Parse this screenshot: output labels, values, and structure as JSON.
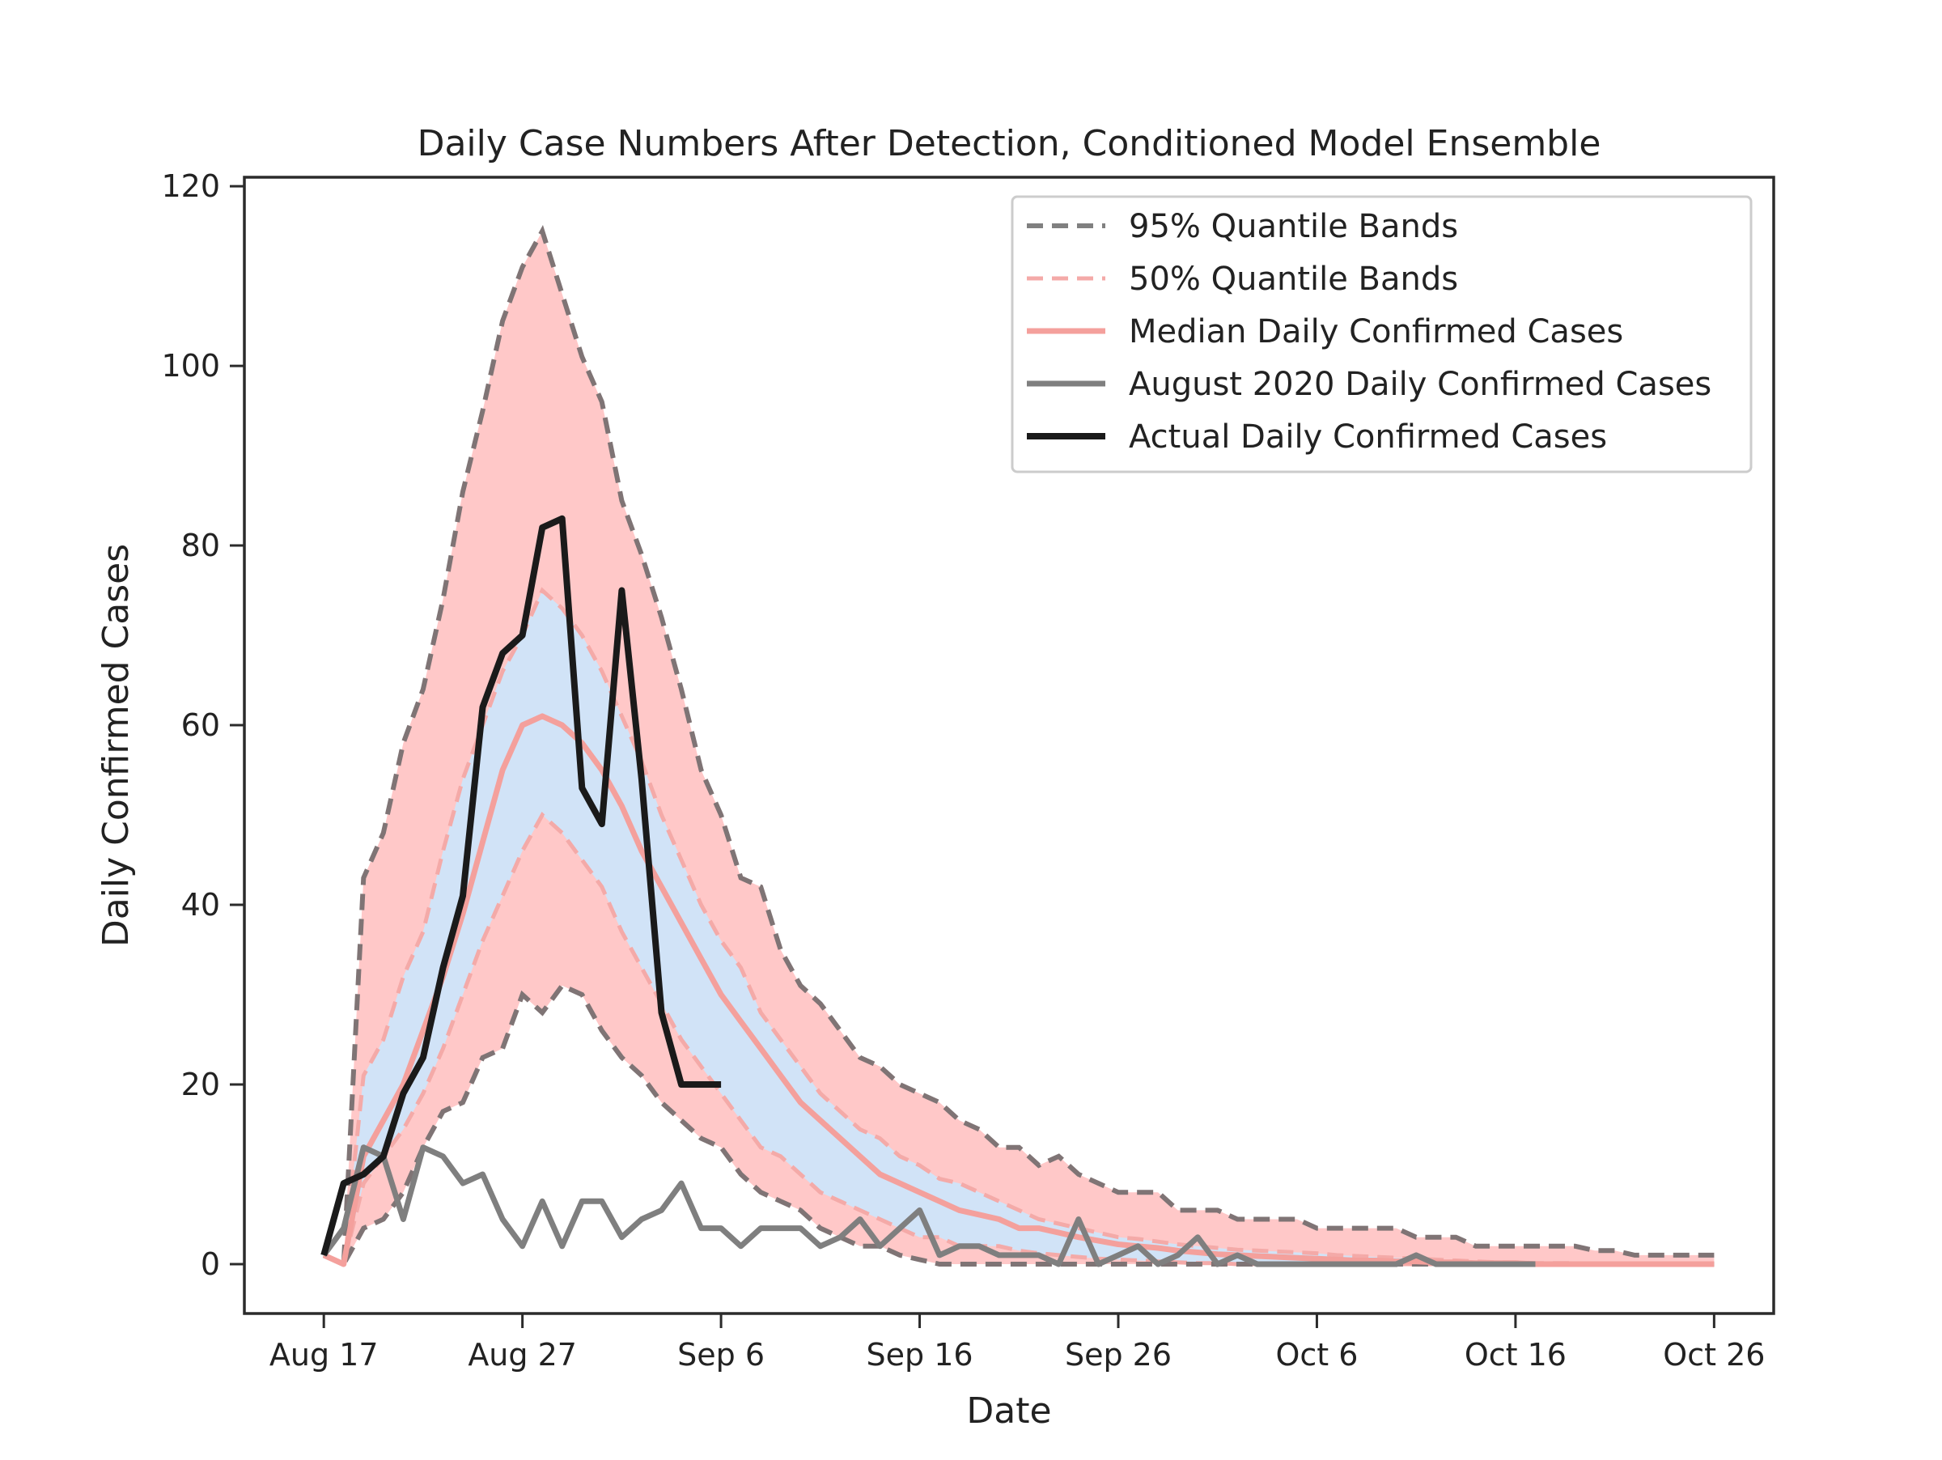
{
  "chart_data": {
    "type": "line",
    "title": "Daily Case Numbers After Detection, Conditioned Model Ensemble",
    "xlabel": "Date",
    "ylabel": "Daily Confirmed Cases",
    "x_ticks": [
      "Aug 17",
      "Aug 27",
      "Sep 6",
      "Sep 16",
      "Sep 26",
      "Oct 6",
      "Oct 16",
      "Oct 26"
    ],
    "y_ticks": [
      0,
      20,
      40,
      60,
      80,
      100,
      120
    ],
    "ylim": [
      -5.5,
      121
    ],
    "xlim": [
      "Aug 13",
      "Oct 29"
    ],
    "grid": false,
    "legend_position": "top-right",
    "legend": [
      {
        "label": "95% Quantile Bands",
        "style": "dashed",
        "color": "#808080"
      },
      {
        "label": "50% Quantile Bands",
        "style": "dashed",
        "color": "#f4aaa8"
      },
      {
        "label": "Median Daily Confirmed Cases",
        "style": "solid",
        "color": "#f4a09c"
      },
      {
        "label": "August 2020 Daily Confirmed Cases",
        "style": "solid",
        "color": "#7f7f7f"
      },
      {
        "label": "Actual Daily Confirmed Cases",
        "style": "solid",
        "color": "#1a1a1a"
      }
    ],
    "colors": {
      "outer_fill": "#ffc8c8",
      "inner_fill": "#d1e3f7",
      "band95_line": "#7f7475",
      "band50_line": "#f4aaa8",
      "median_line": "#f4a09c",
      "august_line": "#7f7f7f",
      "actual_line": "#1a1a1a"
    },
    "x_start_date": "Aug 17",
    "series": [
      {
        "name": "95% Quantile Bands (upper)",
        "start": "Aug 17",
        "values": [
          1,
          0,
          43,
          48,
          58,
          64,
          74,
          86,
          95,
          105,
          111,
          115,
          108,
          101,
          96,
          85,
          79,
          72,
          64,
          55,
          50,
          43,
          42,
          35,
          31,
          29,
          26,
          23,
          22,
          20,
          19,
          18,
          16,
          15,
          13,
          13,
          11,
          12,
          10,
          9,
          8,
          8,
          8,
          6,
          6,
          6,
          5,
          5,
          5,
          5,
          4,
          4,
          4,
          4,
          4,
          3,
          3,
          3,
          2,
          2,
          2,
          2,
          2,
          2,
          1.5,
          1.5,
          1,
          1,
          1,
          1,
          1
        ]
      },
      {
        "name": "50% Quantile Bands (upper)",
        "start": "Aug 17",
        "values": [
          1,
          0,
          21,
          25,
          32,
          37,
          46,
          54,
          60,
          66,
          70,
          75,
          73,
          70,
          66,
          61,
          56,
          50,
          45,
          40,
          36,
          33,
          28,
          25,
          22,
          19,
          17,
          15,
          14,
          12,
          11,
          9.5,
          9,
          8,
          7,
          6,
          5,
          4.5,
          4,
          3.5,
          3,
          2.8,
          2.5,
          2.2,
          2,
          1.8,
          1.6,
          1.5,
          1.4,
          1.3,
          1.2,
          1,
          0.9,
          0.8,
          0.7,
          0.6,
          0.5,
          0.4,
          0.3,
          0.2,
          0.2,
          0.1,
          0.1,
          0.1,
          0,
          0,
          0,
          0,
          0,
          0,
          0
        ]
      },
      {
        "name": "Median Daily Confirmed Cases",
        "start": "Aug 17",
        "values": [
          1,
          0,
          12,
          16,
          20,
          26,
          32,
          39,
          47,
          55,
          60,
          61,
          60,
          58,
          55,
          51,
          46,
          42,
          38,
          34,
          30,
          27,
          24,
          21,
          18,
          16,
          14,
          12,
          10,
          9,
          8,
          7,
          6,
          5.5,
          5,
          4,
          4,
          3.5,
          3,
          2.6,
          2.2,
          2,
          1.8,
          1.5,
          1.3,
          1.1,
          1,
          0.9,
          0.8,
          0.7,
          0.6,
          0.5,
          0.4,
          0.4,
          0.3,
          0.3,
          0.2,
          0.2,
          0.1,
          0.1,
          0.1,
          0,
          0,
          0,
          0,
          0,
          0,
          0,
          0,
          0,
          0
        ]
      },
      {
        "name": "50% Quantile Bands (lower)",
        "start": "Aug 17",
        "values": [
          1,
          0,
          9,
          12,
          15,
          19,
          24,
          30,
          36,
          41,
          46,
          50,
          48,
          45,
          42,
          37,
          33,
          29,
          25,
          22,
          19,
          16,
          13,
          12,
          10,
          8,
          7,
          6,
          5,
          4,
          3,
          3,
          2,
          2,
          2,
          1.5,
          1.2,
          1,
          0.8,
          0.6,
          0.5,
          0.4,
          0.3,
          0.2,
          0.1,
          0.1,
          0,
          0,
          0,
          0,
          0,
          0,
          0,
          0,
          0,
          0,
          0,
          0,
          0,
          0,
          0,
          0,
          0,
          0,
          0,
          0,
          0,
          0,
          0,
          0,
          0
        ]
      },
      {
        "name": "95% Quantile Bands (lower)",
        "start": "Aug 17",
        "values": [
          1,
          0,
          4,
          5,
          8,
          13,
          17,
          18,
          23,
          24,
          30,
          28,
          31,
          30,
          26,
          23,
          21,
          18,
          16,
          14,
          13,
          10,
          8,
          7,
          6,
          4,
          3,
          2,
          2,
          1,
          0.5,
          0,
          0,
          0,
          0,
          0,
          0,
          0,
          0,
          0,
          0,
          0,
          0,
          0,
          0,
          0,
          0,
          0,
          0,
          0,
          0,
          0,
          0,
          0,
          0,
          0,
          0,
          0,
          0,
          0,
          0,
          0,
          0,
          0,
          0,
          0,
          0,
          0,
          0,
          0,
          0
        ]
      },
      {
        "name": "August 2020 Daily Confirmed Cases",
        "start": "Aug 17",
        "values": [
          1,
          4,
          13,
          12,
          5,
          13,
          12,
          9,
          10,
          5,
          2,
          7,
          2,
          7,
          7,
          3,
          5,
          6,
          9,
          4,
          4,
          2,
          4,
          4,
          4,
          2,
          3,
          5,
          2,
          4,
          6,
          1,
          2,
          2,
          1,
          1,
          1,
          0,
          5,
          0,
          1,
          2,
          0,
          1,
          3,
          0,
          1,
          0,
          0,
          0,
          0,
          0,
          0,
          0,
          0,
          1,
          0,
          0,
          0,
          0,
          0,
          0
        ]
      },
      {
        "name": "Actual Daily Confirmed Cases",
        "start": "Aug 17",
        "values": [
          1,
          9,
          10,
          12,
          19,
          23,
          33,
          41,
          62,
          68,
          70,
          82,
          83,
          53,
          49,
          75,
          54,
          28,
          20,
          20,
          20
        ]
      }
    ]
  }
}
